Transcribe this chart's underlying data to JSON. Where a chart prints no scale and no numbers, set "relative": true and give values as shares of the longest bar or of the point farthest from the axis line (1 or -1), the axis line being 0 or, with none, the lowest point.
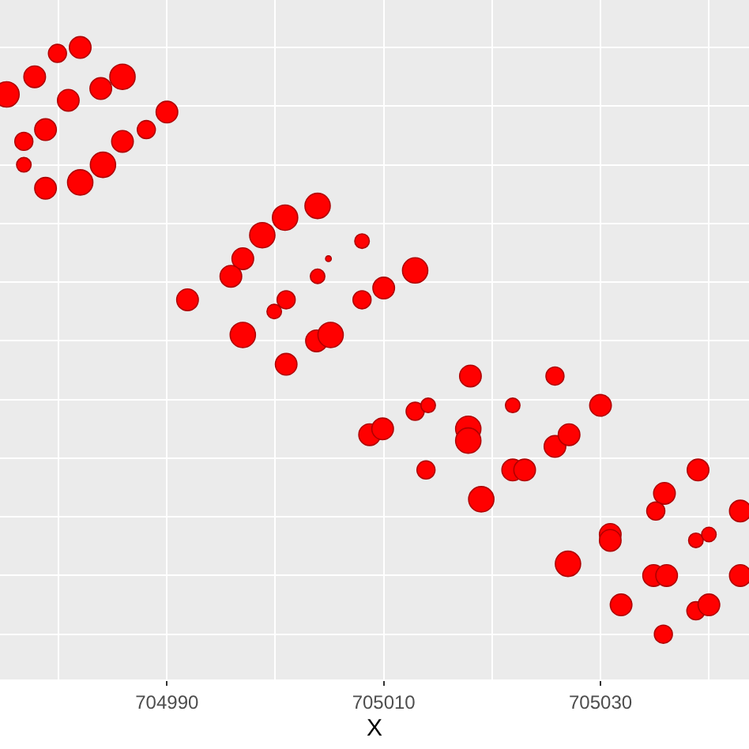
{
  "chart_data": {
    "type": "bubble",
    "xlabel": "X",
    "relative": true,
    "grid": true,
    "marker": "circle",
    "xlim": [
      704974.6,
      705043.7
    ],
    "xticks": [
      704990,
      705010,
      705030
    ],
    "x": [
      704975.2,
      704979.9,
      704982.0,
      704977.8,
      704983.9,
      704985.9,
      704980.9,
      704978.8,
      704976.8,
      704976.8,
      704978.8,
      704982.0,
      704984.1,
      704985.9,
      704988.1,
      704990.0,
      704991.9,
      704997.0,
      704997.0,
      704995.9,
      704998.8,
      705000.9,
      705003.9,
      705001.0,
      704999.9,
      705001.0,
      705003.9,
      705004.9,
      705003.8,
      705005.1,
      705008.0,
      705008.0,
      705010.0,
      705012.9,
      705008.7,
      705009.9,
      705012.9,
      705014.1,
      705018.0,
      705017.8,
      705017.8,
      705013.9,
      705019.0,
      705021.9,
      705021.9,
      705023.0,
      705025.8,
      705025.8,
      705027.1,
      705030.0,
      705030.9,
      705030.9,
      705027.0,
      705031.9,
      705034.9,
      705036.1,
      705035.9,
      705035.1,
      705039.0,
      705038.8,
      705040.0,
      705038.8,
      705040.0,
      705035.8,
      705042.9,
      705042.9
    ],
    "values": [
      0.92,
      0.99,
      1.0,
      0.95,
      0.93,
      0.95,
      0.91,
      0.86,
      0.84,
      0.8,
      0.76,
      0.77,
      0.8,
      0.84,
      0.86,
      0.89,
      0.57,
      0.51,
      0.64,
      0.61,
      0.68,
      0.71,
      0.73,
      0.46,
      0.55,
      0.57,
      0.61,
      0.64,
      0.5,
      0.51,
      0.67,
      0.57,
      0.59,
      0.62,
      0.34,
      0.35,
      0.38,
      0.39,
      0.44,
      0.35,
      0.33,
      0.28,
      0.23,
      0.39,
      0.28,
      0.28,
      0.44,
      0.32,
      0.34,
      0.39,
      0.17,
      0.16,
      0.12,
      0.05,
      0.1,
      0.1,
      0.24,
      0.21,
      0.28,
      0.16,
      0.17,
      0.04,
      0.05,
      0.0,
      0.21,
      0.1
    ],
    "sizes": [
      1,
      0.51,
      0.73,
      0.73,
      0.73,
      1,
      0.73,
      0.73,
      0.51,
      0.33,
      0.73,
      1,
      1,
      0.73,
      0.51,
      0.73,
      0.73,
      1,
      0.73,
      0.73,
      1,
      1,
      1,
      0.73,
      0.33,
      0.51,
      0.33,
      0.05,
      0.73,
      1,
      0.33,
      0.51,
      0.73,
      1,
      0.73,
      0.73,
      0.51,
      0.33,
      0.73,
      1,
      1,
      0.51,
      1,
      0.33,
      0.73,
      0.73,
      0.51,
      0.73,
      0.73,
      0.73,
      0.73,
      0.73,
      1,
      0.73,
      0.73,
      0.73,
      0.73,
      0.51,
      0.73,
      0.33,
      0.33,
      0.51,
      0.73,
      0.51,
      0.73,
      0.73
    ],
    "color": "#ff0000"
  }
}
